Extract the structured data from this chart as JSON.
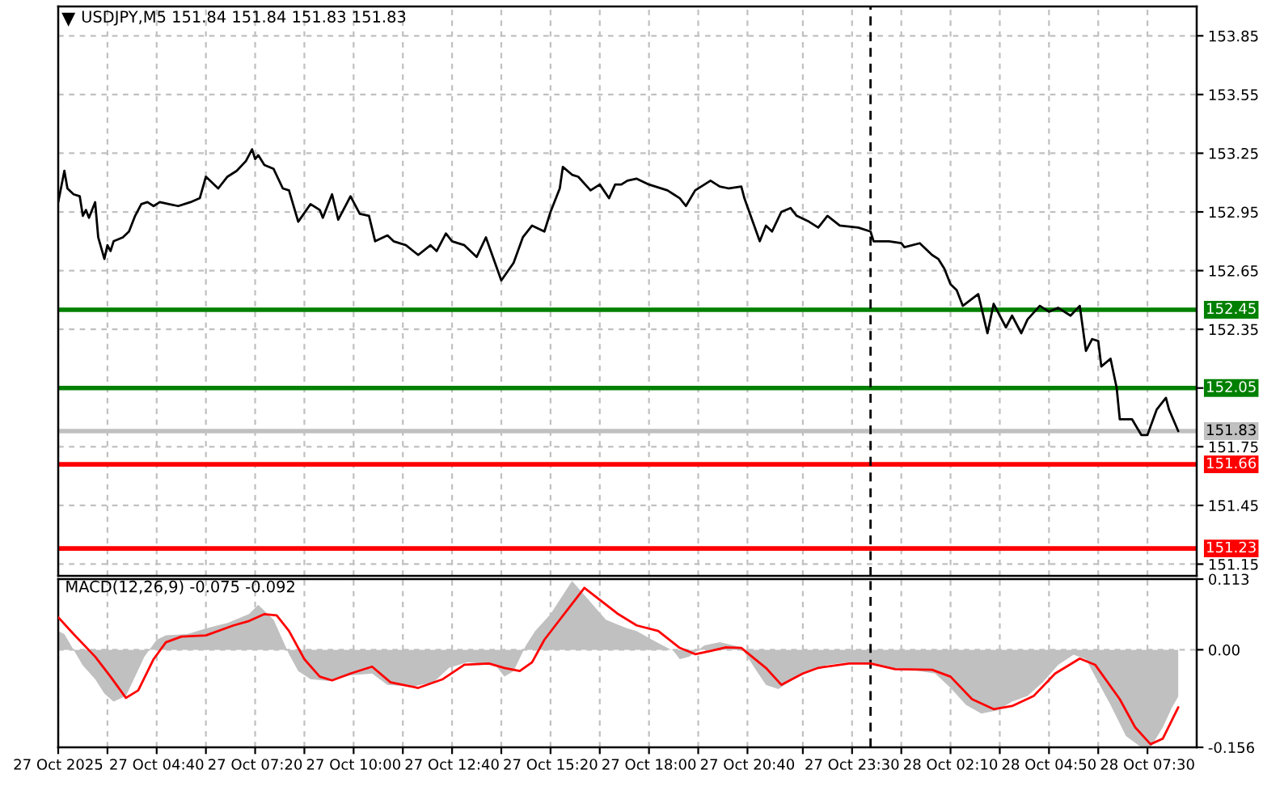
{
  "chart_data": [
    {
      "type": "line",
      "title": "USDJPY,M5 151.84 151.84 151.83 151.83",
      "x": [
        "2025-10-27T02:00",
        "2025-10-27T02:10",
        "2025-10-27T02:15",
        "2025-10-27T02:25",
        "2025-10-27T02:35",
        "2025-10-27T02:40",
        "2025-10-27T02:45",
        "2025-10-27T02:50",
        "2025-10-27T03:00",
        "2025-10-27T03:05",
        "2025-10-27T03:15",
        "2025-10-27T03:20",
        "2025-10-27T03:25",
        "2025-10-27T03:30",
        "2025-10-27T03:45",
        "2025-10-27T03:55",
        "2025-10-27T04:05",
        "2025-10-27T04:15",
        "2025-10-27T04:25",
        "2025-10-27T04:35",
        "2025-10-27T04:45",
        "2025-10-27T05:00",
        "2025-10-27T05:15",
        "2025-10-27T05:35",
        "2025-10-27T05:50",
        "2025-10-27T06:00",
        "2025-10-27T06:20",
        "2025-10-27T06:35",
        "2025-10-27T06:50",
        "2025-10-27T07:05",
        "2025-10-27T07:15",
        "2025-10-27T07:20",
        "2025-10-27T07:25",
        "2025-10-27T07:35",
        "2025-10-27T07:50",
        "2025-10-27T08:05",
        "2025-10-27T08:15",
        "2025-10-27T08:30",
        "2025-10-27T08:50",
        "2025-10-27T09:05",
        "2025-10-27T09:10",
        "2025-10-27T09:25",
        "2025-10-27T09:35",
        "2025-10-27T09:55",
        "2025-10-27T10:10",
        "2025-10-27T10:25",
        "2025-10-27T10:35",
        "2025-10-27T10:55",
        "2025-10-27T11:05",
        "2025-10-27T11:25",
        "2025-10-27T11:45",
        "2025-10-27T12:05",
        "2025-10-27T12:15",
        "2025-10-27T12:30",
        "2025-10-27T12:40",
        "2025-10-27T13:00",
        "2025-10-27T13:20",
        "2025-10-27T13:35",
        "2025-10-27T14:00",
        "2025-10-27T14:20",
        "2025-10-27T14:35",
        "2025-10-27T14:50",
        "2025-10-27T15:10",
        "2025-10-27T15:20",
        "2025-10-27T15:35",
        "2025-10-27T15:40",
        "2025-10-27T15:55",
        "2025-10-27T16:05",
        "2025-10-27T16:25",
        "2025-10-27T16:40",
        "2025-10-27T16:55",
        "2025-10-27T17:05",
        "2025-10-27T17:15",
        "2025-10-27T17:25",
        "2025-10-27T17:40",
        "2025-10-27T18:00",
        "2025-10-27T18:30",
        "2025-10-27T18:40",
        "2025-10-27T18:50",
        "2025-10-27T19:00",
        "2025-10-27T19:15",
        "2025-10-27T19:40",
        "2025-10-27T19:55",
        "2025-10-27T20:10",
        "2025-10-27T20:30",
        "2025-10-27T20:35",
        "2025-10-27T21:00",
        "2025-10-27T21:10",
        "2025-10-27T21:20",
        "2025-10-27T21:35",
        "2025-10-27T21:50",
        "2025-10-27T22:00",
        "2025-10-27T22:20",
        "2025-10-27T22:35",
        "2025-10-27T22:50",
        "2025-10-27T23:10",
        "2025-10-27T23:40",
        "2025-10-28T00:00",
        "2025-10-28T00:05",
        "2025-10-28T00:30",
        "2025-10-28T00:50",
        "2025-10-28T00:55",
        "2025-10-28T01:20",
        "2025-10-28T01:40",
        "2025-10-28T01:50",
        "2025-10-28T02:00",
        "2025-10-28T02:10",
        "2025-10-28T02:20",
        "2025-10-28T02:30",
        "2025-10-28T02:55",
        "2025-10-28T03:10",
        "2025-10-28T03:20",
        "2025-10-28T03:40",
        "2025-10-28T03:50",
        "2025-10-28T04:05",
        "2025-10-28T04:15",
        "2025-10-28T04:35",
        "2025-10-28T04:50",
        "2025-10-28T05:05",
        "2025-10-28T05:25",
        "2025-10-28T05:40",
        "2025-10-28T05:50",
        "2025-10-28T06:00",
        "2025-10-28T06:10",
        "2025-10-28T06:15",
        "2025-10-28T06:30",
        "2025-10-28T06:40",
        "2025-10-28T06:45",
        "2025-10-28T07:05",
        "2025-10-28T07:20",
        "2025-10-28T07:30",
        "2025-10-28T07:45",
        "2025-10-28T08:00",
        "2025-10-28T08:05",
        "2025-10-28T08:20"
      ],
      "series": [
        {
          "color": "#000000",
          "values": [
            153.0,
            153.16,
            153.07,
            153.04,
            153.03,
            152.93,
            152.96,
            152.92,
            153.0,
            152.82,
            152.71,
            152.78,
            152.75,
            152.8,
            152.82,
            152.85,
            152.93,
            152.99,
            153.0,
            152.98,
            153.0,
            152.99,
            152.98,
            153.0,
            153.02,
            153.13,
            153.07,
            153.13,
            153.16,
            153.21,
            153.27,
            153.22,
            153.24,
            153.19,
            153.17,
            153.07,
            153.06,
            152.9,
            152.99,
            152.96,
            152.92,
            153.04,
            152.91,
            153.03,
            152.94,
            152.93,
            152.8,
            152.83,
            152.8,
            152.78,
            152.73,
            152.78,
            152.75,
            152.84,
            152.8,
            152.78,
            152.72,
            152.82,
            152.6,
            152.69,
            152.82,
            152.88,
            152.85,
            152.95,
            153.07,
            153.18,
            153.14,
            153.13,
            153.06,
            153.09,
            153.02,
            153.09,
            153.09,
            153.11,
            153.12,
            153.09,
            153.06,
            153.04,
            153.02,
            152.98,
            153.06,
            153.11,
            153.08,
            153.07,
            153.08,
            153.02,
            152.8,
            152.88,
            152.85,
            152.95,
            152.97,
            152.93,
            152.9,
            152.87,
            152.93,
            152.88,
            152.87,
            152.85,
            152.8,
            152.8,
            152.79,
            152.77,
            152.79,
            152.73,
            152.71,
            152.66,
            152.58,
            152.55,
            152.47,
            152.53,
            152.33,
            152.48,
            152.36,
            152.42,
            152.33,
            152.4,
            152.47,
            152.44,
            152.46,
            152.42,
            152.47,
            152.24,
            152.3,
            152.29,
            152.16,
            152.2,
            152.05,
            151.89,
            151.89,
            151.81,
            151.81,
            151.94,
            152.0,
            151.94,
            151.83
          ]
        }
      ],
      "xlim": [
        "2025-10-27T02:00",
        "2025-10-28T08:50"
      ],
      "xticks": [
        "2025-10-27T02:00",
        "2025-10-27T03:20",
        "2025-10-27T04:40",
        "2025-10-27T06:00",
        "2025-10-27T07:20",
        "2025-10-27T08:40",
        "2025-10-27T10:00",
        "2025-10-27T11:20",
        "2025-10-27T12:40",
        "2025-10-27T14:00",
        "2025-10-27T15:20",
        "2025-10-27T16:40",
        "2025-10-27T18:00",
        "2025-10-27T19:20",
        "2025-10-27T20:40",
        "2025-10-27T22:10",
        "2025-10-27T23:30",
        "2025-10-28T00:50",
        "2025-10-28T02:10",
        "2025-10-28T03:30",
        "2025-10-28T04:50",
        "2025-10-28T06:10",
        "2025-10-28T07:30"
      ],
      "ylim": [
        151.09,
        154.0
      ],
      "yticks": [
        151.15,
        151.45,
        151.75,
        {
          "value": 152.05,
          "label": null
        },
        152.35,
        152.65,
        152.95,
        153.25,
        153.55,
        153.85
      ],
      "ref_lines": [
        {
          "axis": "y",
          "value": 152.45,
          "label": "152.45",
          "color": "#008000"
        },
        {
          "axis": "y",
          "value": 152.05,
          "label": "152.05",
          "color": "#008000"
        },
        {
          "axis": "y",
          "value": 151.83,
          "label": "151.83",
          "color": "#c0c0c0"
        },
        {
          "axis": "y",
          "value": 151.66,
          "label": "151.66",
          "color": "#ff0000"
        },
        {
          "axis": "y",
          "value": 151.23,
          "label": "151.23",
          "color": "#ff0000"
        },
        {
          "axis": "x",
          "value": "2025-10-28T00:00",
          "color": "#000000",
          "line_style": "dashed"
        }
      ],
      "grid": true,
      "tick_labels": "y"
    },
    {
      "type": "line",
      "title": "MACD(12,26,9) -0.075 -0.092",
      "series": [
        {
          "type": "area",
          "color": "#c0c0c0",
          "x": [
            "2025-10-27T02:00",
            "2025-10-27T02:10",
            "2025-10-27T02:25",
            "2025-10-27T02:40",
            "2025-10-27T03:00",
            "2025-10-27T03:15",
            "2025-10-27T03:30",
            "2025-10-27T03:50",
            "2025-10-27T04:05",
            "2025-10-27T04:20",
            "2025-10-27T04:40",
            "2025-10-27T04:55",
            "2025-10-27T05:30",
            "2025-10-27T06:00",
            "2025-10-27T06:35",
            "2025-10-27T07:10",
            "2025-10-27T07:25",
            "2025-10-27T07:50",
            "2025-10-27T08:15",
            "2025-10-27T08:30",
            "2025-10-27T08:50",
            "2025-10-27T09:20",
            "2025-10-27T09:55",
            "2025-10-27T10:30",
            "2025-10-27T10:55",
            "2025-10-27T11:35",
            "2025-10-27T12:10",
            "2025-10-27T12:35",
            "2025-10-27T13:05",
            "2025-10-27T13:50",
            "2025-10-27T14:05",
            "2025-10-27T14:20",
            "2025-10-27T14:40",
            "2025-10-27T14:55",
            "2025-10-27T15:20",
            "2025-10-27T15:55",
            "2025-10-27T16:50",
            "2025-10-27T17:25",
            "2025-10-27T17:40",
            "2025-10-27T18:05",
            "2025-10-27T18:40",
            "2025-10-27T18:50",
            "2025-10-27T19:05",
            "2025-10-27T19:30",
            "2025-10-27T19:55",
            "2025-10-27T20:30",
            "2025-10-27T20:55",
            "2025-10-27T21:10",
            "2025-10-27T21:30",
            "2025-10-27T21:55",
            "2025-10-27T22:20",
            "2025-10-27T22:50",
            "2025-10-27T23:25",
            "2025-10-28T00:00",
            "2025-10-28T00:30",
            "2025-10-28T01:05",
            "2025-10-28T01:45",
            "2025-10-28T02:10",
            "2025-10-28T02:35",
            "2025-10-28T03:00",
            "2025-10-28T03:25",
            "2025-10-28T03:50",
            "2025-10-28T04:15",
            "2025-10-28T04:40",
            "2025-10-28T05:05",
            "2025-10-28T05:30",
            "2025-10-28T05:50",
            "2025-10-28T06:05",
            "2025-10-28T06:30",
            "2025-10-28T06:55",
            "2025-10-28T07:20",
            "2025-10-28T07:35",
            "2025-10-28T07:55",
            "2025-10-28T08:10",
            "2025-10-28T08:20"
          ],
          "values": [
            0.03,
            0.025,
            0.0,
            -0.025,
            -0.047,
            -0.07,
            -0.083,
            -0.074,
            -0.043,
            -0.011,
            0.016,
            0.023,
            0.025,
            0.034,
            0.043,
            0.057,
            0.072,
            0.048,
            -0.007,
            -0.034,
            -0.047,
            -0.05,
            -0.041,
            -0.038,
            -0.056,
            -0.059,
            -0.052,
            -0.029,
            -0.02,
            -0.024,
            -0.043,
            -0.034,
            0.007,
            0.03,
            0.057,
            0.11,
            0.048,
            0.034,
            0.03,
            0.016,
            -0.002,
            -0.015,
            -0.011,
            0.007,
            0.012,
            0.004,
            -0.034,
            -0.056,
            -0.063,
            -0.047,
            -0.035,
            -0.024,
            -0.02,
            -0.024,
            -0.029,
            -0.032,
            -0.038,
            -0.061,
            -0.088,
            -0.102,
            -0.097,
            -0.083,
            -0.074,
            -0.052,
            -0.024,
            -0.008,
            -0.015,
            -0.043,
            -0.088,
            -0.138,
            -0.156,
            -0.156,
            -0.124,
            -0.092,
            -0.075
          ]
        },
        {
          "type": "line",
          "color": "#ff0000",
          "x": [
            "2025-10-27T02:00",
            "2025-10-27T02:25",
            "2025-10-27T03:00",
            "2025-10-27T03:25",
            "2025-10-27T03:50",
            "2025-10-27T04:10",
            "2025-10-27T04:35",
            "2025-10-27T04:55",
            "2025-10-27T05:20",
            "2025-10-27T06:00",
            "2025-10-27T06:45",
            "2025-10-27T07:10",
            "2025-10-27T07:35",
            "2025-10-27T07:55",
            "2025-10-27T08:15",
            "2025-10-27T08:40",
            "2025-10-27T09:05",
            "2025-10-27T09:25",
            "2025-10-27T09:55",
            "2025-10-27T10:30",
            "2025-10-27T11:00",
            "2025-10-27T11:45",
            "2025-10-27T12:25",
            "2025-10-27T13:00",
            "2025-10-27T13:40",
            "2025-10-27T14:05",
            "2025-10-27T14:30",
            "2025-10-27T14:50",
            "2025-10-27T15:10",
            "2025-10-27T15:35",
            "2025-10-27T16:15",
            "2025-10-27T17:10",
            "2025-10-27T17:40",
            "2025-10-27T18:15",
            "2025-10-27T18:50",
            "2025-10-27T19:15",
            "2025-10-27T19:40",
            "2025-10-27T20:05",
            "2025-10-27T20:30",
            "2025-10-27T21:10",
            "2025-10-27T21:35",
            "2025-10-27T22:10",
            "2025-10-27T22:35",
            "2025-10-27T23:25",
            "2025-10-28T00:00",
            "2025-10-28T00:40",
            "2025-10-28T01:40",
            "2025-10-28T02:10",
            "2025-10-28T02:45",
            "2025-10-28T03:20",
            "2025-10-28T03:50",
            "2025-10-28T04:25",
            "2025-10-28T05:00",
            "2025-10-28T05:40",
            "2025-10-28T06:05",
            "2025-10-28T06:45",
            "2025-10-28T07:10",
            "2025-10-28T07:35",
            "2025-10-28T07:55",
            "2025-10-28T08:20"
          ],
          "values": [
            0.052,
            0.025,
            -0.011,
            -0.043,
            -0.077,
            -0.065,
            -0.015,
            0.012,
            0.021,
            0.023,
            0.039,
            0.046,
            0.057,
            0.055,
            0.03,
            -0.015,
            -0.043,
            -0.049,
            -0.038,
            -0.027,
            -0.052,
            -0.061,
            -0.047,
            -0.024,
            -0.022,
            -0.029,
            -0.034,
            -0.02,
            0.016,
            0.048,
            0.099,
            0.057,
            0.039,
            0.03,
            0.003,
            -0.007,
            -0.002,
            0.004,
            0.003,
            -0.029,
            -0.056,
            -0.038,
            -0.029,
            -0.022,
            -0.022,
            -0.031,
            -0.032,
            -0.043,
            -0.079,
            -0.095,
            -0.09,
            -0.074,
            -0.038,
            -0.014,
            -0.024,
            -0.079,
            -0.124,
            -0.151,
            -0.142,
            -0.092
          ]
        }
      ],
      "xlim": [
        "2025-10-27T02:00",
        "2025-10-28T08:50"
      ],
      "xticks": [
        {
          "value": "2025-10-27T02:00",
          "label": "27 Oct 2025"
        },
        {
          "value": "2025-10-27T03:20",
          "label": null
        },
        {
          "value": "2025-10-27T04:40",
          "label": "27 Oct 04:40"
        },
        {
          "value": "2025-10-27T06:00",
          "label": null
        },
        {
          "value": "2025-10-27T07:20",
          "label": "27 Oct 07:20"
        },
        {
          "value": "2025-10-27T08:40",
          "label": null
        },
        {
          "value": "2025-10-27T10:00",
          "label": "27 Oct 10:00"
        },
        {
          "value": "2025-10-27T11:20",
          "label": null
        },
        {
          "value": "2025-10-27T12:40",
          "label": "27 Oct 12:40"
        },
        {
          "value": "2025-10-27T14:00",
          "label": null
        },
        {
          "value": "2025-10-27T15:20",
          "label": "27 Oct 15:20"
        },
        {
          "value": "2025-10-27T16:40",
          "label": null
        },
        {
          "value": "2025-10-27T18:00",
          "label": "27 Oct 18:00"
        },
        {
          "value": "2025-10-27T19:20",
          "label": null
        },
        {
          "value": "2025-10-27T20:40",
          "label": "27 Oct 20:40"
        },
        {
          "value": "2025-10-27T22:10",
          "label": null
        },
        {
          "value": "2025-10-27T23:30",
          "label": "27 Oct 23:30"
        },
        {
          "value": "2025-10-28T00:50",
          "label": null
        },
        {
          "value": "2025-10-28T02:10",
          "label": "28 Oct 02:10"
        },
        {
          "value": "2025-10-28T03:30",
          "label": null
        },
        {
          "value": "2025-10-28T04:50",
          "label": "28 Oct 04:50"
        },
        {
          "value": "2025-10-28T06:10",
          "label": null
        },
        {
          "value": "2025-10-28T07:30",
          "label": "28 Oct 07:30"
        }
      ],
      "ylim": [
        -0.156,
        0.113
      ],
      "yticks": [
        -0.156,
        {
          "value": 0,
          "label": "0.00"
        },
        0.113
      ],
      "ref_lines": [
        {
          "axis": "x",
          "value": "2025-10-28T00:00",
          "color": "#000000",
          "line_style": "dashed"
        }
      ],
      "grid": true
    }
  ]
}
